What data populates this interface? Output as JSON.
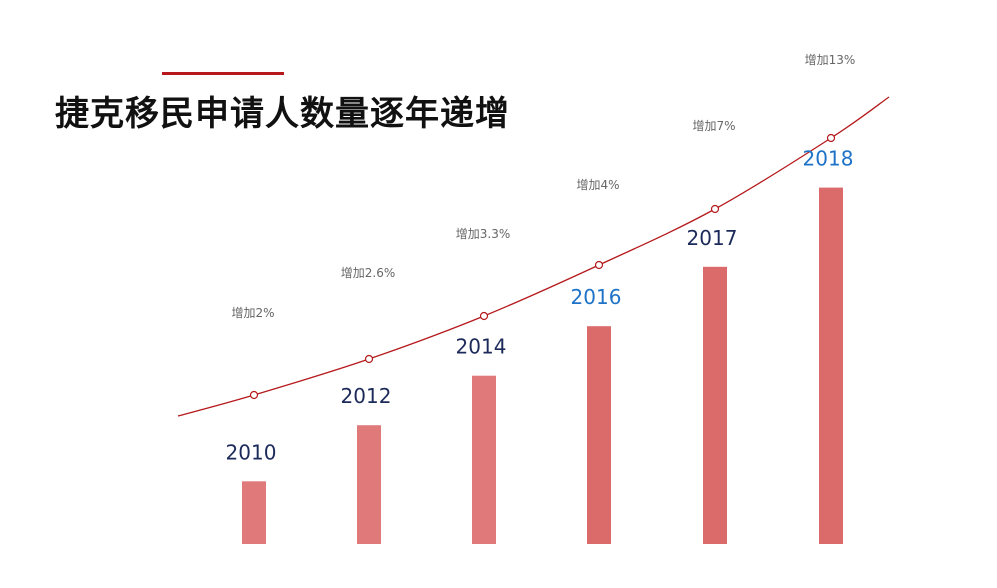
{
  "title": "捷克移民申请人数量逐年递增",
  "colors": {
    "bar": "#e07a7a",
    "bar_dark": "#db6b6b",
    "curve": "#b5191c",
    "year_dark": "#1c2a5a",
    "year_blue": "#1e73c8",
    "pct": "#666666"
  },
  "chart_data": {
    "type": "bar",
    "title": "捷克移民申请人数量逐年递增",
    "categories": [
      "2010",
      "2012",
      "2014",
      "2016",
      "2017",
      "2018"
    ],
    "values": [
      19,
      36,
      51,
      66,
      84,
      108
    ],
    "growth_labels": [
      "增加2%",
      "增加2.6%",
      "增加3.3%",
      "增加4%",
      "增加7%",
      "增加13%"
    ],
    "year_label_colors": [
      "dark",
      "dark",
      "dark",
      "blue",
      "dark",
      "blue"
    ],
    "trend_line": true,
    "xlabel": "",
    "ylabel": "",
    "ylim": [
      0,
      120
    ],
    "grid": false,
    "legend": "none"
  }
}
